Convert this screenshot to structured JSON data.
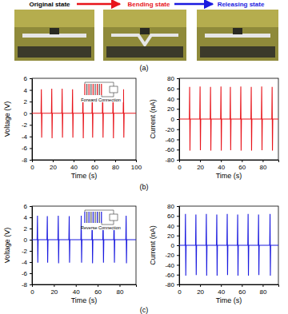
{
  "figure": {
    "states": [
      "Original state",
      "Bending state",
      "Releasing state"
    ],
    "panel_labels": [
      "(a)",
      "(b)",
      "(c)"
    ]
  },
  "chart_data": [
    {
      "type": "line",
      "x_label": "Time (s)",
      "y_label": "Voltage (V)",
      "annotations": [
        "Forward Connection"
      ],
      "x": [
        0,
        8.7,
        9,
        9.3,
        9.6,
        18.7,
        19,
        19.3,
        19.6,
        28.7,
        29,
        29.3,
        29.6,
        38.7,
        39,
        39.3,
        39.6,
        48.7,
        49,
        49.3,
        49.6,
        57.7,
        58,
        58.3,
        58.6,
        67.7,
        68,
        68.3,
        68.6,
        77.7,
        78,
        78.3,
        78.6,
        87.7,
        88,
        88.3,
        88.6,
        100
      ],
      "series": [
        {
          "color": "#e8141b",
          "values": [
            0,
            0,
            4.1,
            -4.2,
            0,
            0,
            4.2,
            -4.3,
            0,
            0,
            4.2,
            -4.2,
            0,
            0,
            4.1,
            -4.2,
            0,
            0,
            4.2,
            -4.3,
            0,
            0,
            4.1,
            -4.2,
            0,
            0,
            4.2,
            -4.2,
            0,
            0,
            4.2,
            -4.3,
            0,
            0,
            4.1,
            -4.2,
            0,
            0
          ]
        }
      ],
      "xlim": [
        0,
        100
      ],
      "ylim": [
        -8,
        6
      ],
      "xticks": [
        0,
        20,
        40,
        60,
        80,
        100
      ],
      "yticks": [
        -8,
        -6,
        -4,
        -2,
        0,
        2,
        4,
        6
      ]
    },
    {
      "type": "line",
      "x_label": "Time (s)",
      "y_label": "Current (nA)",
      "x": [
        0,
        9.7,
        10,
        10.3,
        10.6,
        19.7,
        20,
        20.3,
        20.6,
        29.7,
        30,
        30.3,
        30.6,
        39.7,
        40,
        40.3,
        40.6,
        48.7,
        49,
        49.3,
        49.6,
        58.7,
        59,
        59.3,
        59.6,
        68.7,
        69,
        69.3,
        69.6,
        78.7,
        79,
        79.3,
        79.6,
        88.7,
        89,
        89.3,
        89.6,
        95
      ],
      "series": [
        {
          "color": "#e8141b",
          "values": [
            0,
            0,
            63,
            -62,
            0,
            0,
            64,
            -61,
            0,
            0,
            63,
            -62,
            0,
            0,
            64,
            -62,
            0,
            0,
            63,
            -61,
            0,
            0,
            64,
            -62,
            0,
            0,
            63,
            -62,
            0,
            0,
            64,
            -61,
            0,
            0,
            63,
            -62,
            0,
            0
          ]
        }
      ],
      "xlim": [
        0,
        95
      ],
      "ylim": [
        -80,
        80
      ],
      "xticks": [
        0,
        20,
        40,
        60,
        80
      ],
      "yticks": [
        -80,
        -60,
        -40,
        -20,
        0,
        20,
        40,
        60,
        80
      ]
    },
    {
      "type": "line",
      "x_label": "Time (s)",
      "y_label": "Voltage (V)",
      "annotations": [
        "Reverse Connection"
      ],
      "x": [
        0,
        4.7,
        5,
        5.3,
        5.6,
        13.7,
        14,
        14.3,
        14.6,
        23.7,
        24,
        24.3,
        24.6,
        33.7,
        34,
        34.3,
        34.6,
        44.7,
        45,
        45.3,
        45.6,
        54.7,
        55,
        55.3,
        55.6,
        64.7,
        65,
        65.3,
        65.6,
        74.7,
        75,
        75.3,
        75.6,
        85.7,
        86,
        86.3,
        86.6,
        95
      ],
      "series": [
        {
          "color": "#1a1adf",
          "values": [
            0,
            0,
            4.3,
            -4.1,
            0,
            0,
            4.2,
            -4.1,
            0,
            0,
            4.3,
            -4.2,
            0,
            0,
            4.2,
            -4.1,
            0,
            0,
            4.3,
            -4.1,
            0,
            0,
            4.2,
            -4.2,
            0,
            0,
            4.3,
            -4.1,
            0,
            0,
            4.2,
            -4.1,
            0,
            0,
            4.3,
            -4.2,
            0,
            0
          ]
        }
      ],
      "xlim": [
        0,
        95
      ],
      "ylim": [
        -8,
        6
      ],
      "xticks": [
        0,
        20,
        40,
        60,
        80
      ],
      "yticks": [
        -8,
        -6,
        -4,
        -2,
        0,
        2,
        4,
        6
      ]
    },
    {
      "type": "line",
      "x_label": "Time (s)",
      "y_label": "Current (nA)",
      "x": [
        0,
        5.7,
        6,
        6.3,
        6.6,
        15.7,
        16,
        16.3,
        16.6,
        25.7,
        26,
        26.3,
        26.6,
        35.7,
        36,
        36.3,
        36.6,
        45.7,
        46,
        46.3,
        46.6,
        55.7,
        56,
        56.3,
        56.6,
        65.7,
        66,
        66.3,
        66.6,
        75.7,
        76,
        76.3,
        76.6,
        86.7,
        87,
        87.3,
        87.6,
        95
      ],
      "series": [
        {
          "color": "#1a1adf",
          "values": [
            0,
            0,
            64,
            -62,
            0,
            0,
            63,
            -61,
            0,
            0,
            64,
            -62,
            0,
            0,
            63,
            -62,
            0,
            0,
            64,
            -61,
            0,
            0,
            63,
            -62,
            0,
            0,
            64,
            -62,
            0,
            0,
            63,
            -61,
            0,
            0,
            64,
            -62,
            0,
            0
          ]
        }
      ],
      "xlim": [
        0,
        95
      ],
      "ylim": [
        -80,
        80
      ],
      "xticks": [
        0,
        20,
        40,
        60,
        80
      ],
      "yticks": [
        -80,
        -60,
        -40,
        -20,
        0,
        20,
        40,
        60,
        80
      ]
    }
  ]
}
